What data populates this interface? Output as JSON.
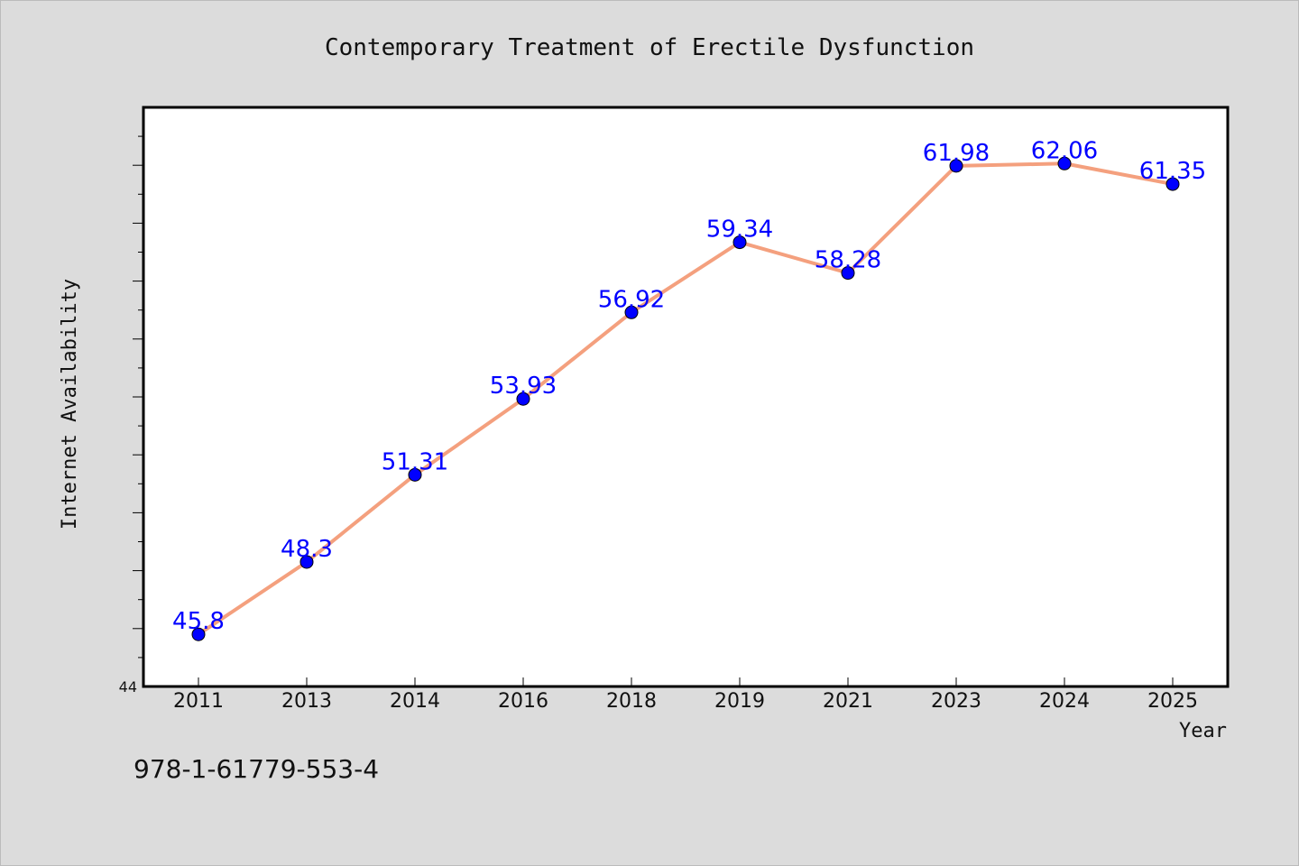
{
  "colors": {
    "background": "#dcdcdc",
    "plot_background": "#ffffff",
    "line": "#f4a07e",
    "marker": "#0000ff",
    "data_label": "#0000ff"
  },
  "footer": {
    "isbn": "978-1-61779-553-4"
  },
  "chart_data": {
    "type": "line",
    "title": "Contemporary Treatment of Erectile Dysfunction",
    "xlabel": "Year",
    "ylabel": "Internet Availability",
    "categories": [
      "2011",
      "2013",
      "2014",
      "2016",
      "2018",
      "2019",
      "2021",
      "2023",
      "2024",
      "2025"
    ],
    "series": [
      {
        "values": [
          45.8,
          48.3,
          51.31,
          53.93,
          56.92,
          59.34,
          58.28,
          61.98,
          62.06,
          61.35
        ],
        "labels": [
          "45.8",
          "48.3",
          "51.31",
          "53.93",
          "56.92",
          "59.34",
          "58.28",
          "61.98",
          "62.06",
          "61.35"
        ]
      }
    ],
    "ylim": [
      44,
      64
    ],
    "y_tick_labels": [
      "44"
    ],
    "grid": false,
    "legend": "none"
  }
}
